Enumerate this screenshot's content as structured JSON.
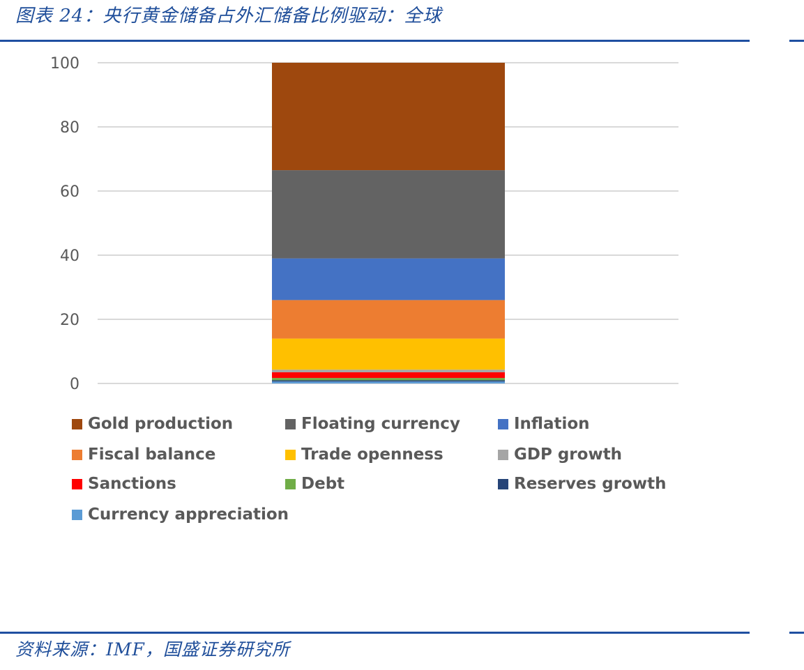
{
  "header": {
    "figure_title": "图表 24：央行黄金储备占外汇储备比例驱动：全球"
  },
  "footer": {
    "source": "资料来源：IMF，国盛证券研究所"
  },
  "chart_data": {
    "type": "bar",
    "stacked": true,
    "categories": [
      ""
    ],
    "ylim": [
      0,
      100
    ],
    "yticks": [
      0,
      20,
      40,
      60,
      80,
      100
    ],
    "grid": true,
    "legend_position": "bottom",
    "series": [
      {
        "name": "Currency appreciation",
        "color": "#5b9bd5",
        "values": [
          0.6
        ]
      },
      {
        "name": "Reserves growth",
        "color": "#264478",
        "values": [
          0.4
        ]
      },
      {
        "name": "Debt",
        "color": "#70ad47",
        "values": [
          0.7
        ]
      },
      {
        "name": "Sanctions",
        "color": "#ff0000",
        "values": [
          1.8
        ]
      },
      {
        "name": "GDP growth",
        "color": "#a5a5a5",
        "values": [
          0.8
        ]
      },
      {
        "name": "Trade openness",
        "color": "#ffc000",
        "values": [
          9.7
        ]
      },
      {
        "name": "Fiscal balance",
        "color": "#ed7d31",
        "values": [
          12.0
        ]
      },
      {
        "name": "Inflation",
        "color": "#4472c4",
        "values": [
          13.0
        ]
      },
      {
        "name": "Floating currency",
        "color": "#636363",
        "values": [
          27.5
        ]
      },
      {
        "name": "Gold production",
        "color": "#9e480e",
        "values": [
          33.5
        ]
      }
    ],
    "legend_order": [
      "Gold production",
      "Floating currency",
      "Inflation",
      "Fiscal balance",
      "Trade openness",
      "GDP growth",
      "Sanctions",
      "Debt",
      "Reserves growth",
      "Currency appreciation"
    ]
  },
  "colors": {
    "brand_blue": "#1f4fa1",
    "axis_text": "#595959",
    "gridline": "#d9d9d9"
  }
}
